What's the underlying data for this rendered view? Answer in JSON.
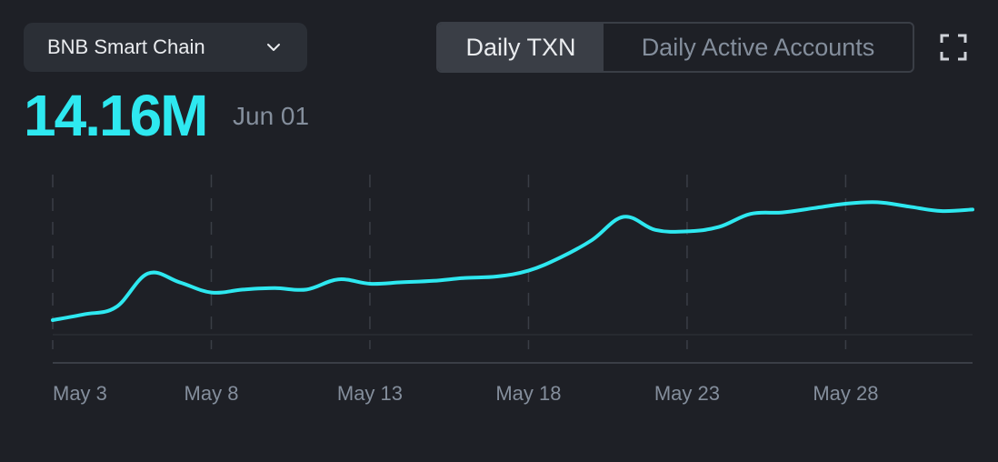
{
  "chain_selector": {
    "label": "BNB Smart Chain",
    "icon": "chevron-down-icon"
  },
  "tabs": [
    {
      "label": "Daily TXN",
      "active": true
    },
    {
      "label": "Daily Active Accounts",
      "active": false
    }
  ],
  "fullscreen_icon": "fullscreen-icon",
  "highlight": {
    "value": "14.16M",
    "date": "Jun 01"
  },
  "colors": {
    "line": "#2ee8f0",
    "background": "#1e2026",
    "grid": "#3a3e46",
    "tick": "#848e9c"
  },
  "chart_data": {
    "type": "line",
    "x_ticks": [
      "May 3",
      "May 8",
      "May 13",
      "May 18",
      "May 23",
      "May 28"
    ],
    "x": [
      "May 3",
      "May 4",
      "May 5",
      "May 6",
      "May 7",
      "May 8",
      "May 9",
      "May 10",
      "May 11",
      "May 12",
      "May 13",
      "May 14",
      "May 15",
      "May 16",
      "May 17",
      "May 18",
      "May 19",
      "May 20",
      "May 21",
      "May 22",
      "May 23",
      "May 24",
      "May 25",
      "May 26",
      "May 27",
      "May 28",
      "May 29",
      "May 30",
      "May 31",
      "Jun 01"
    ],
    "series": [
      {
        "values": [
          0.05,
          0.09,
          0.14,
          0.37,
          0.31,
          0.24,
          0.26,
          0.27,
          0.26,
          0.33,
          0.3,
          0.31,
          0.32,
          0.34,
          0.35,
          0.39,
          0.48,
          0.6,
          0.76,
          0.67,
          0.66,
          0.69,
          0.78,
          0.79,
          0.82,
          0.85,
          0.86,
          0.83,
          0.8,
          0.81
        ]
      }
    ],
    "grid": "vertical-dashed",
    "legend": "none"
  }
}
